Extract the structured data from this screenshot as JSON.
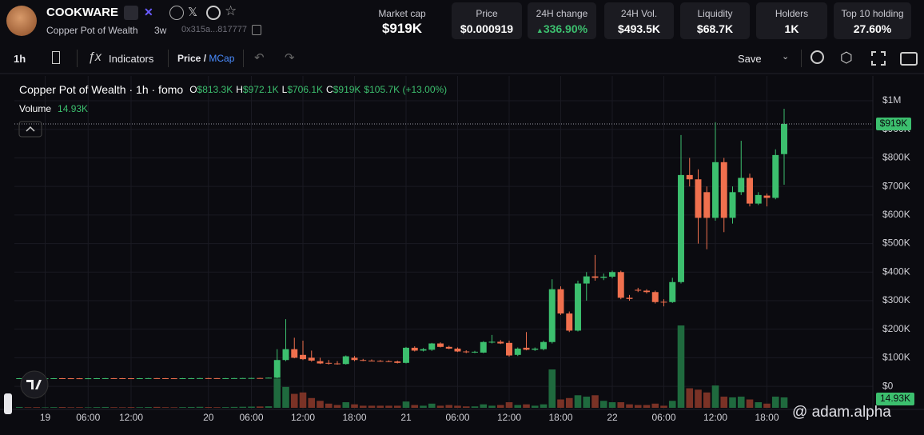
{
  "header": {
    "symbol": "COOKWARE",
    "name": "Copper Pot of Wealth",
    "age": "3w",
    "address": "0x315a...817777",
    "market_cap": {
      "label": "Market cap",
      "value": "$919K"
    },
    "stats": [
      {
        "label": "Price",
        "value": "$0.000919"
      },
      {
        "label": "24H change",
        "value": "336.90%"
      },
      {
        "label": "24H Vol.",
        "value": "$493.5K"
      },
      {
        "label": "Liquidity",
        "value": "$68.7K"
      },
      {
        "label": "Holders",
        "value": "1K"
      },
      {
        "label": "Top 10 holding",
        "value": "27.60%"
      }
    ]
  },
  "toolbar": {
    "interval": "1h",
    "indicators": "Indicators",
    "price": "Price",
    "separator": "/",
    "mcap": "MCap",
    "save": "Save"
  },
  "watermark": "@ adam.alpha",
  "chart_data": {
    "type": "candlestick",
    "legend_title": "Copper Pot of Wealth · 1h · fomo",
    "legend_values": [
      {
        "key": "O",
        "label": "$813.3K"
      },
      {
        "key": "H",
        "label": "$972.1K"
      },
      {
        "key": "L",
        "label": "$706.1K"
      },
      {
        "key": "C",
        "label": "$919K"
      }
    ],
    "legend_change": "$105.7K (+13.00%)",
    "volume_label": "Volume",
    "volume_value_label": "14.93K",
    "last_price_label": "$919K",
    "last_volume_label": "14.93K",
    "up_color": "#3cbf6e",
    "down_color": "#f0704e",
    "up_volume_color": "#1f6a3e",
    "down_volume_color": "#7a3226",
    "ylim": [
      -81000,
      1087000
    ],
    "yticks": [
      {
        "value": 0,
        "label": "$0"
      },
      {
        "value": 100000,
        "label": "$100K"
      },
      {
        "value": 200000,
        "label": "$200K"
      },
      {
        "value": 300000,
        "label": "$300K"
      },
      {
        "value": 400000,
        "label": "$400K"
      },
      {
        "value": 500000,
        "label": "$500K"
      },
      {
        "value": 600000,
        "label": "$600K"
      },
      {
        "value": 700000,
        "label": "$700K"
      },
      {
        "value": 800000,
        "label": "$800K"
      },
      {
        "value": 900000,
        "label": "$900K"
      },
      {
        "value": 1000000,
        "label": "$1M"
      }
    ],
    "grid": true,
    "categories": [
      null,
      null,
      null,
      "19",
      null,
      null,
      null,
      null,
      "06:00",
      null,
      null,
      null,
      null,
      "12:00",
      null,
      null,
      null,
      null,
      null,
      null,
      null,
      null,
      "20",
      null,
      null,
      null,
      null,
      "06:00",
      null,
      null,
      null,
      null,
      null,
      "12:00",
      null,
      null,
      null,
      null,
      null,
      "18:00",
      null,
      null,
      null,
      null,
      null,
      "21",
      null,
      null,
      null,
      null,
      null,
      "06:00",
      null,
      null,
      null,
      null,
      null,
      "12:00",
      null,
      null,
      null,
      null,
      null,
      "18:00",
      null,
      null,
      null,
      null,
      null,
      "22",
      null,
      null,
      null,
      null,
      null,
      "06:00",
      null,
      null,
      null,
      null,
      null,
      "12:00",
      null,
      null,
      null,
      null,
      null,
      "18:00",
      null,
      null
    ],
    "open": [
      28000,
      28200,
      28100,
      27900,
      28000,
      28300,
      28100,
      28000,
      27800,
      28000,
      28200,
      28400,
      28300,
      28100,
      28000,
      28200,
      28500,
      28300,
      28100,
      28000,
      28200,
      28400,
      28600,
      28500,
      28300,
      28400,
      28600,
      28800,
      29000,
      28900,
      30000,
      92000,
      130000,
      110000,
      100000,
      88000,
      82000,
      80000,
      78000,
      100000,
      92000,
      90000,
      89000,
      88000,
      87000,
      82000,
      135000,
      125000,
      128000,
      150000,
      138000,
      132000,
      122000,
      120000,
      118000,
      153000,
      156000,
      152000,
      110000,
      135000,
      128000,
      130000,
      155000,
      340000,
      255000,
      195000,
      360000,
      385000,
      380000,
      384000,
      400000,
      310000,
      338000,
      335000,
      330000,
      296000,
      295000,
      365000,
      740000,
      725000,
      680000,
      590000,
      785000,
      590000,
      680000,
      730000,
      640000,
      668000,
      660000,
      813300
    ],
    "high": [
      28800,
      28700,
      28700,
      28600,
      28900,
      28900,
      28700,
      28600,
      28600,
      28800,
      29000,
      29000,
      28900,
      28700,
      28800,
      29100,
      29100,
      28900,
      28700,
      28800,
      29000,
      29200,
      29200,
      29100,
      29000,
      29200,
      29400,
      29600,
      29600,
      30600,
      130000,
      235000,
      170000,
      160000,
      125000,
      100000,
      92000,
      88000,
      108000,
      106000,
      96000,
      94000,
      92000,
      91000,
      90000,
      138000,
      140000,
      134000,
      152000,
      154000,
      142000,
      136000,
      126000,
      124000,
      158000,
      180000,
      162000,
      160000,
      136000,
      190000,
      136000,
      160000,
      375000,
      350000,
      262000,
      370000,
      400000,
      460000,
      395000,
      405000,
      405000,
      320000,
      345000,
      340000,
      335000,
      305000,
      380000,
      880000,
      800000,
      760000,
      700000,
      925000,
      800000,
      700000,
      860000,
      745000,
      680000,
      675000,
      830000,
      972100
    ],
    "low": [
      27600,
      27500,
      27300,
      27200,
      27400,
      27500,
      27400,
      27200,
      27200,
      27400,
      27600,
      27700,
      27500,
      27400,
      27400,
      27600,
      27700,
      27500,
      27400,
      27400,
      27600,
      27800,
      27900,
      27700,
      27700,
      27800,
      28000,
      28200,
      28300,
      28300,
      28000,
      88000,
      98000,
      92000,
      86000,
      78000,
      76000,
      76000,
      76000,
      88000,
      88000,
      87000,
      86000,
      85000,
      80000,
      80000,
      122000,
      122000,
      124000,
      136000,
      130000,
      120000,
      116000,
      116000,
      116000,
      150000,
      148000,
      104000,
      106000,
      126000,
      124000,
      126000,
      150000,
      250000,
      190000,
      192000,
      300000,
      370000,
      372000,
      378000,
      305000,
      300000,
      330000,
      325000,
      290000,
      280000,
      292000,
      360000,
      700000,
      500000,
      480000,
      580000,
      540000,
      570000,
      670000,
      630000,
      635000,
      630000,
      655000,
      706100
    ],
    "close": [
      28200,
      28100,
      27900,
      28000,
      28300,
      28100,
      28000,
      27800,
      28000,
      28200,
      28400,
      28300,
      28100,
      28000,
      28200,
      28500,
      28300,
      28100,
      28000,
      28200,
      28400,
      28600,
      28500,
      28300,
      28400,
      28600,
      28800,
      29000,
      28900,
      30000,
      92000,
      130000,
      100000,
      95000,
      90000,
      80000,
      80000,
      78000,
      105000,
      92000,
      90000,
      89000,
      88000,
      87000,
      82000,
      135000,
      125000,
      130000,
      150000,
      138000,
      132000,
      122000,
      120000,
      121000,
      155000,
      156000,
      150000,
      108000,
      132000,
      128000,
      132000,
      155000,
      340000,
      255000,
      195000,
      360000,
      385000,
      380000,
      384000,
      400000,
      310000,
      306000,
      335000,
      330000,
      295000,
      294000,
      365000,
      740000,
      725000,
      590000,
      590000,
      785000,
      590000,
      680000,
      730000,
      640000,
      670000,
      660000,
      810000,
      919000
    ],
    "volume": [
      1200,
      800,
      900,
      700,
      1000,
      1100,
      800,
      900,
      700,
      1000,
      1200,
      900,
      800,
      1000,
      900,
      1100,
      1300,
      900,
      800,
      1000,
      1200,
      1400,
      1100,
      900,
      1000,
      1300,
      1500,
      1700,
      1900,
      2200,
      42000,
      30000,
      20000,
      22000,
      14000,
      10000,
      6000,
      4000,
      8000,
      5000,
      3000,
      3000,
      3000,
      3000,
      3000,
      9000,
      4000,
      3000,
      6000,
      3000,
      4000,
      3000,
      2000,
      2000,
      5000,
      3000,
      4000,
      8000,
      4000,
      5000,
      3000,
      5000,
      55000,
      12000,
      14000,
      18000,
      16000,
      18000,
      10000,
      8000,
      8000,
      5000,
      4000,
      4000,
      6000,
      3000,
      10000,
      118000,
      28000,
      26000,
      22000,
      32000,
      16000,
      15000,
      16000,
      12000,
      8000,
      6000,
      16000,
      14930
    ]
  }
}
